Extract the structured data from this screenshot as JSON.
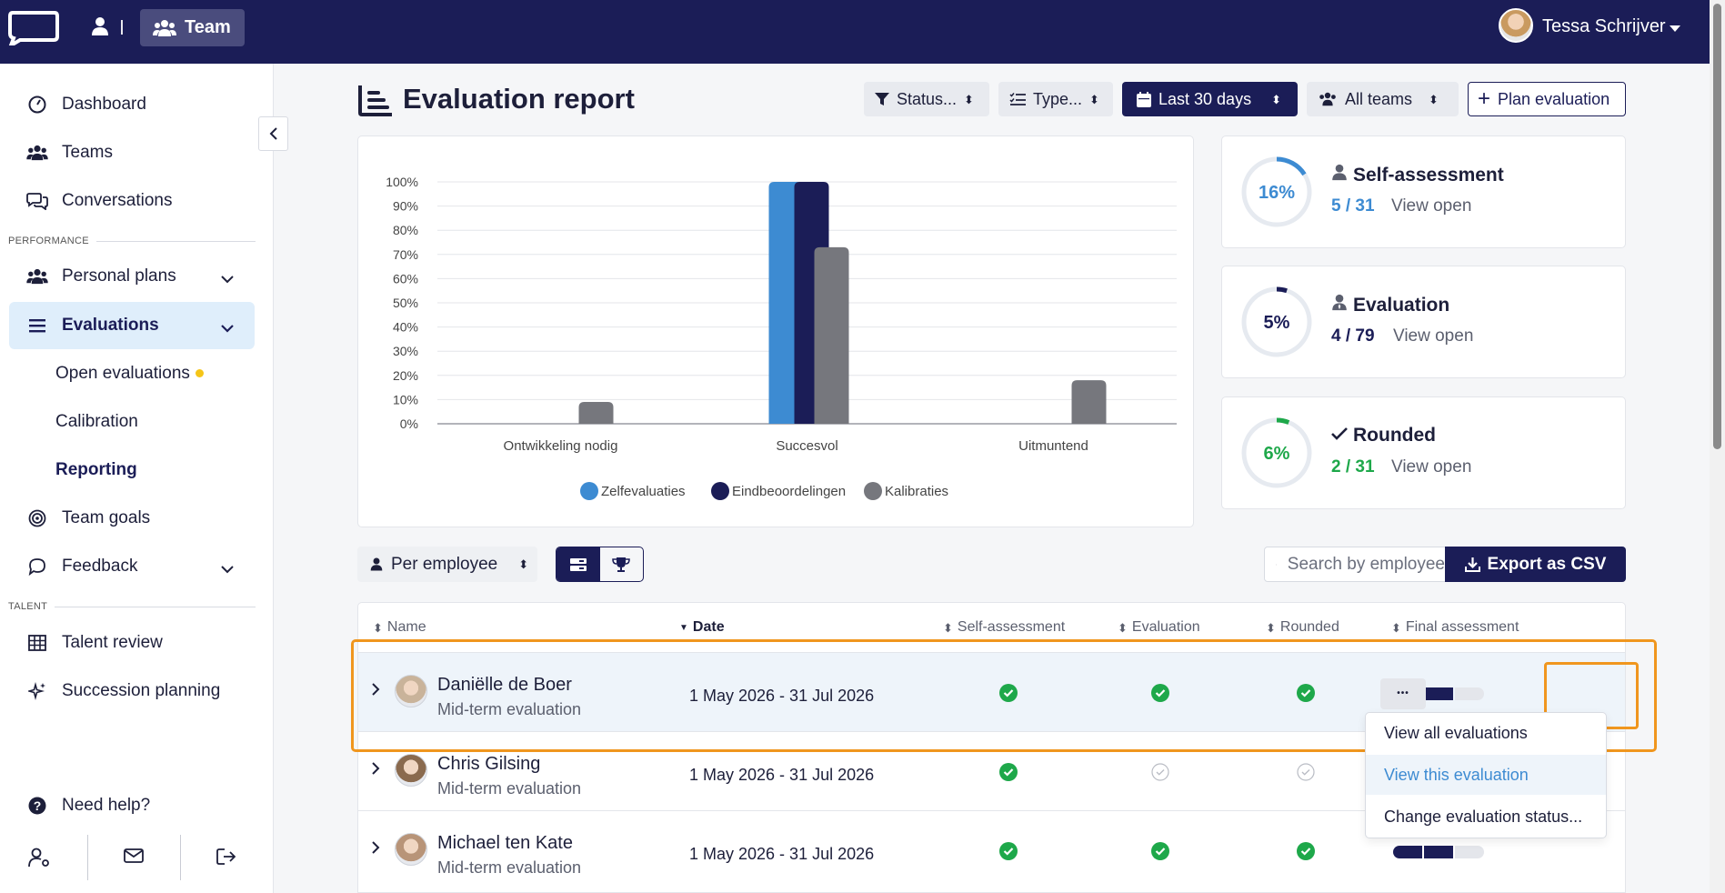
{
  "topbar": {
    "team_label": "Team",
    "user_name": "Tessa Schrijver"
  },
  "sidebar": {
    "items": [
      {
        "label": "Dashboard",
        "icon": "gauge-icon"
      },
      {
        "label": "Teams",
        "icon": "users-icon"
      },
      {
        "label": "Conversations",
        "icon": "chat-icon"
      }
    ],
    "section_performance": "PERFORMANCE",
    "personal_plans": "Personal plans",
    "evaluations": "Evaluations",
    "sub_items": [
      "Open evaluations",
      "Calibration",
      "Reporting"
    ],
    "team_goals": "Team goals",
    "feedback": "Feedback",
    "section_talent": "TALENT",
    "talent_review": "Talent review",
    "succession_planning": "Succession planning",
    "help": "Need help?"
  },
  "header": {
    "title": "Evaluation report",
    "filters": {
      "status": "Status...",
      "type": "Type...",
      "period": "Last 30 days",
      "teams": "All teams",
      "plan": "Plan evaluation"
    }
  },
  "chart_data": {
    "type": "bar",
    "categories": [
      "Ontwikkeling nodig",
      "Succesvol",
      "Uitmuntend"
    ],
    "series": [
      {
        "name": "Zelfevaluaties",
        "values": [
          0,
          100,
          0
        ],
        "color": "#3d8bd2"
      },
      {
        "name": "Eindbeoordelingen",
        "values": [
          0,
          100,
          0
        ],
        "color": "#1b1d57"
      },
      {
        "name": "Kalibraties",
        "values": [
          9,
          73,
          18
        ],
        "color": "#76777d"
      }
    ],
    "y_ticks": [
      "0%",
      "10%",
      "20%",
      "30%",
      "40%",
      "50%",
      "60%",
      "70%",
      "80%",
      "90%",
      "100%"
    ],
    "ylim": [
      0,
      100
    ],
    "grid": true,
    "legend": "bottom"
  },
  "stats": [
    {
      "percent": "16%",
      "value": 0.16,
      "title": "Self-assessment",
      "count": "5 / 31",
      "link": "View open",
      "color": "#3d8bd2",
      "icon": "person-icon"
    },
    {
      "percent": "5%",
      "value": 0.05,
      "title": "Evaluation",
      "count": "4 / 79",
      "link": "View open",
      "color": "#1b1d57",
      "icon": "person-tie-icon"
    },
    {
      "percent": "6%",
      "value": 0.06,
      "title": "Rounded",
      "count": "2 / 31",
      "link": "View open",
      "color": "#1ea84a",
      "icon": "check-icon"
    }
  ],
  "controls": {
    "group_by": "Per employee",
    "search_placeholder": "Search by employee",
    "export": "Export as CSV"
  },
  "table": {
    "headers": [
      "Name",
      "Date",
      "Self-assessment",
      "Evaluation",
      "Rounded",
      "Final assessment"
    ],
    "rows": [
      {
        "name": "Daniëlle de Boer",
        "type": "Mid-term evaluation",
        "date": "1 May 2026 - 31 Jul 2026",
        "self": true,
        "eval": true,
        "rounded": true
      },
      {
        "name": "Chris Gilsing",
        "type": "Mid-term evaluation",
        "date": "1 May 2026 - 31 Jul 2026",
        "self": true,
        "eval": false,
        "rounded": false
      },
      {
        "name": "Michael ten Kate",
        "type": "Mid-term evaluation",
        "date": "1 May 2026 - 31 Jul 2026",
        "self": true,
        "eval": true,
        "rounded": true
      }
    ]
  },
  "dropdown": {
    "items": [
      "View all evaluations",
      "View this evaluation",
      "Change evaluation status..."
    ]
  }
}
